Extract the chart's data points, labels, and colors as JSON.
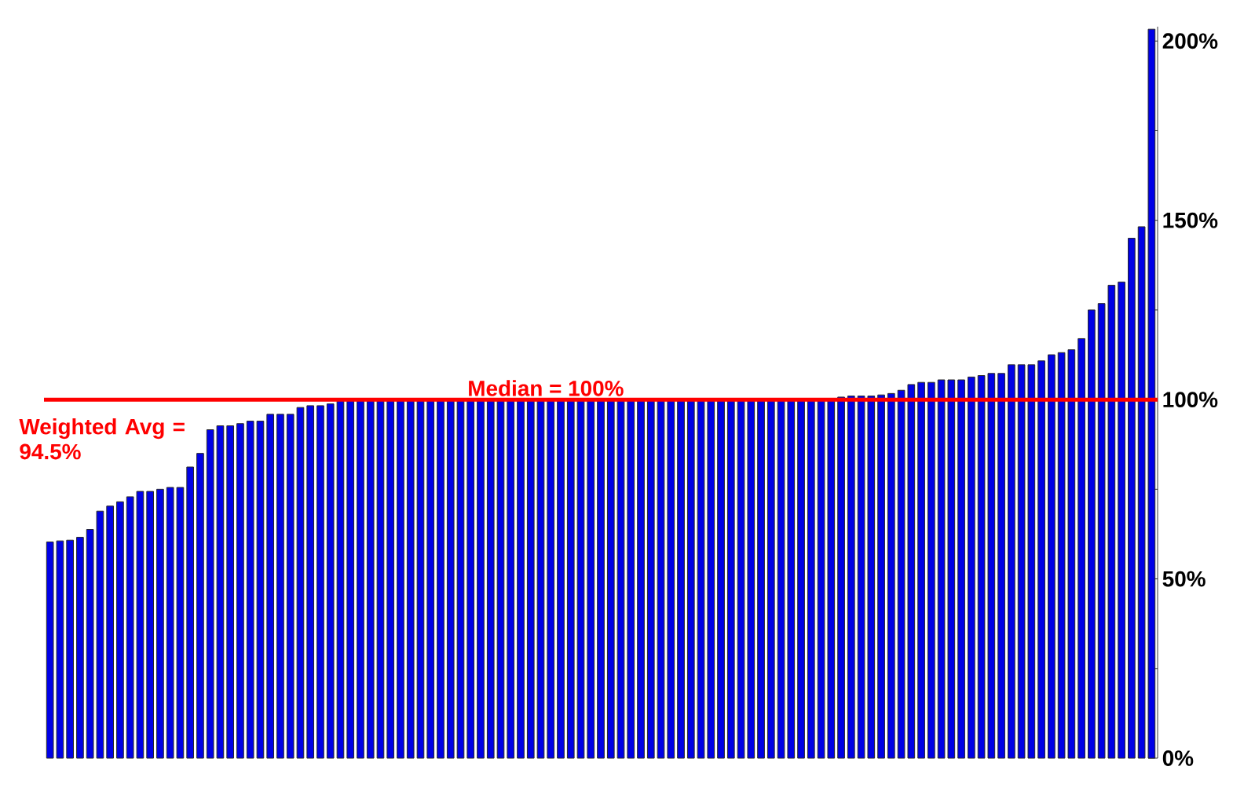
{
  "chart_data": {
    "type": "bar",
    "categories": [
      null,
      null,
      null,
      null,
      null,
      null,
      null,
      null,
      null,
      null,
      null,
      null,
      null,
      null,
      null,
      null,
      null,
      null,
      null,
      null,
      null,
      null,
      null,
      null,
      null,
      null,
      null,
      null,
      null,
      null,
      null,
      null,
      null,
      null,
      null,
      null,
      null,
      null,
      null,
      null,
      null,
      null,
      null,
      null,
      null,
      null,
      null,
      null,
      null,
      null,
      null,
      null,
      null,
      null,
      null,
      null,
      null,
      null,
      null,
      null,
      null,
      null,
      null,
      null,
      null,
      null,
      null,
      null,
      null,
      null,
      null,
      null,
      null,
      null,
      null,
      null,
      null,
      null,
      null,
      null,
      null,
      null,
      null,
      null,
      null,
      null,
      null,
      null,
      null,
      null,
      null,
      null,
      null,
      null,
      null,
      null,
      null,
      null,
      null,
      null,
      null,
      null,
      null,
      null,
      null,
      null,
      null,
      null,
      null,
      null,
      null
    ],
    "values": [
      60.3,
      60.6,
      60.8,
      61.6,
      63.8,
      68.9,
      70.3,
      71.5,
      72.9,
      74.4,
      74.4,
      75.0,
      75.5,
      75.5,
      81.2,
      85.0,
      91.6,
      92.7,
      92.7,
      93.3,
      94.0,
      94.0,
      95.9,
      95.9,
      95.9,
      97.8,
      98.3,
      98.3,
      98.8,
      100,
      100,
      100,
      100,
      100,
      100,
      100,
      100,
      100,
      100,
      100,
      100,
      100,
      100,
      100,
      100,
      100,
      100,
      100,
      100,
      100,
      100,
      100,
      100,
      100,
      100,
      100,
      100,
      100,
      100,
      100,
      100,
      100,
      100,
      100,
      100,
      100,
      100,
      100,
      100,
      100,
      100,
      100,
      100,
      100,
      100,
      100,
      100,
      100,
      100,
      100.7,
      101,
      101,
      101,
      101.3,
      101.7,
      102.6,
      104.2,
      104.8,
      104.8,
      105.5,
      105.5,
      105.5,
      106.3,
      106.7,
      107.3,
      107.3,
      109.7,
      109.7,
      109.7,
      110.8,
      112.5,
      113.1,
      113.9,
      117,
      125,
      126.8,
      131.9,
      132.8,
      145,
      148.2,
      203.3
    ],
    "color": "#0000e6",
    "ylim": [
      0,
      204
    ],
    "yticks": [
      {
        "value": 0,
        "label": "0%"
      },
      {
        "value": 25,
        "label": null
      },
      {
        "value": 50,
        "label": "50%"
      },
      {
        "value": 75,
        "label": null
      },
      {
        "value": 100,
        "label": "100%"
      },
      {
        "value": 125,
        "label": null
      },
      {
        "value": 150,
        "label": "150%"
      },
      {
        "value": 175,
        "label": null
      },
      {
        "value": 200,
        "label": "200%"
      }
    ],
    "tick_labels": "y",
    "ref_lines": [
      {
        "axis": "y",
        "value": 100,
        "label": "Median = 100%",
        "color": "#ff0000"
      }
    ],
    "annotations": [
      "Weighted Avg = 94.5%"
    ]
  }
}
